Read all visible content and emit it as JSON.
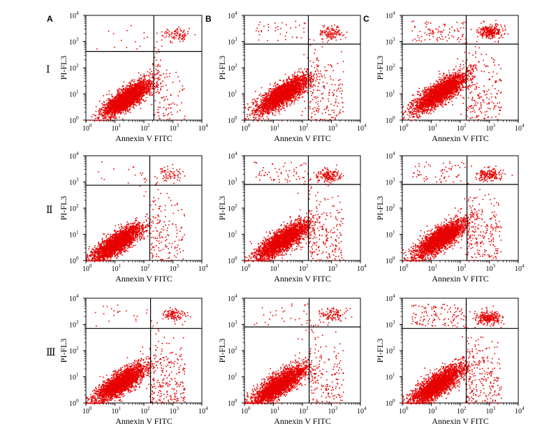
{
  "figure": {
    "column_labels": [
      "A",
      "B",
      "C"
    ],
    "row_labels": [
      "Ⅰ",
      "Ⅱ",
      "Ⅲ"
    ]
  },
  "chart_data": {
    "type": "scatter",
    "layout": "3x3 grid of flow-cytometry dot plots",
    "xlabel": "Annexin V FITC",
    "ylabel": "PI-FL3",
    "x_scale": "log",
    "y_scale": "log",
    "xlim": [
      1,
      10000
    ],
    "ylim": [
      1,
      10000
    ],
    "tick_base": "10",
    "tick_exponents": [
      "0",
      "1",
      "2",
      "3",
      "4"
    ],
    "point_color": "#e60000",
    "quadrant_line_color": "#000000",
    "panels": [
      {
        "row": "Ⅰ",
        "col": "A",
        "gate_x": 220,
        "gate_y": 420,
        "main_cluster": {
          "center": [
            25,
            7
          ],
          "spread": [
            0.42,
            0.38
          ],
          "n": 2600
        },
        "early_apoptotic_n": 60,
        "late_apoptotic": {
          "center": [
            1200,
            2000
          ],
          "n": 90
        },
        "necrotic_n": 12
      },
      {
        "row": "Ⅰ",
        "col": "B",
        "gate_x": 160,
        "gate_y": 800,
        "main_cluster": {
          "center": [
            20,
            10
          ],
          "spread": [
            0.45,
            0.4
          ],
          "n": 2600
        },
        "early_apoptotic_n": 120,
        "late_apoptotic": {
          "center": [
            900,
            2200
          ],
          "n": 120
        },
        "necrotic_n": 40
      },
      {
        "row": "Ⅰ",
        "col": "C",
        "gate_x": 160,
        "gate_y": 800,
        "main_cluster": {
          "center": [
            20,
            12
          ],
          "spread": [
            0.45,
            0.4
          ],
          "n": 2600
        },
        "early_apoptotic_n": 160,
        "late_apoptotic": {
          "center": [
            1000,
            2500
          ],
          "n": 260
        },
        "necrotic_n": 90
      },
      {
        "row": "Ⅱ",
        "col": "A",
        "gate_x": 160,
        "gate_y": 750,
        "main_cluster": {
          "center": [
            12,
            5
          ],
          "spread": [
            0.42,
            0.38
          ],
          "n": 2600
        },
        "early_apoptotic_n": 120,
        "late_apoptotic": {
          "center": [
            800,
            2000
          ],
          "n": 70
        },
        "necrotic_n": 15
      },
      {
        "row": "Ⅱ",
        "col": "B",
        "gate_x": 160,
        "gate_y": 800,
        "main_cluster": {
          "center": [
            20,
            6
          ],
          "spread": [
            0.45,
            0.4
          ],
          "n": 2600
        },
        "early_apoptotic_n": 160,
        "late_apoptotic": {
          "center": [
            800,
            1800
          ],
          "n": 160
        },
        "necrotic_n": 60
      },
      {
        "row": "Ⅱ",
        "col": "C",
        "gate_x": 170,
        "gate_y": 800,
        "main_cluster": {
          "center": [
            20,
            7
          ],
          "spread": [
            0.45,
            0.4
          ],
          "n": 2600
        },
        "early_apoptotic_n": 170,
        "late_apoptotic": {
          "center": [
            900,
            2000
          ],
          "n": 170
        },
        "necrotic_n": 60
      },
      {
        "row": "Ⅲ",
        "col": "A",
        "gate_x": 170,
        "gate_y": 700,
        "main_cluster": {
          "center": [
            15,
            6
          ],
          "spread": [
            0.45,
            0.4
          ],
          "n": 2600
        },
        "early_apoptotic_n": 180,
        "late_apoptotic": {
          "center": [
            1000,
            2500
          ],
          "n": 110
        },
        "necrotic_n": 20
      },
      {
        "row": "Ⅲ",
        "col": "B",
        "gate_x": 170,
        "gate_y": 800,
        "main_cluster": {
          "center": [
            15,
            5
          ],
          "spread": [
            0.45,
            0.4
          ],
          "n": 2600
        },
        "early_apoptotic_n": 140,
        "late_apoptotic": {
          "center": [
            1100,
            2500
          ],
          "n": 110
        },
        "necrotic_n": 30
      },
      {
        "row": "Ⅲ",
        "col": "C",
        "gate_x": 160,
        "gate_y": 700,
        "main_cluster": {
          "center": [
            15,
            5
          ],
          "spread": [
            0.45,
            0.42
          ],
          "n": 2600
        },
        "early_apoptotic_n": 190,
        "late_apoptotic": {
          "center": [
            900,
            1800
          ],
          "n": 260
        },
        "necrotic_n": 120
      }
    ]
  }
}
